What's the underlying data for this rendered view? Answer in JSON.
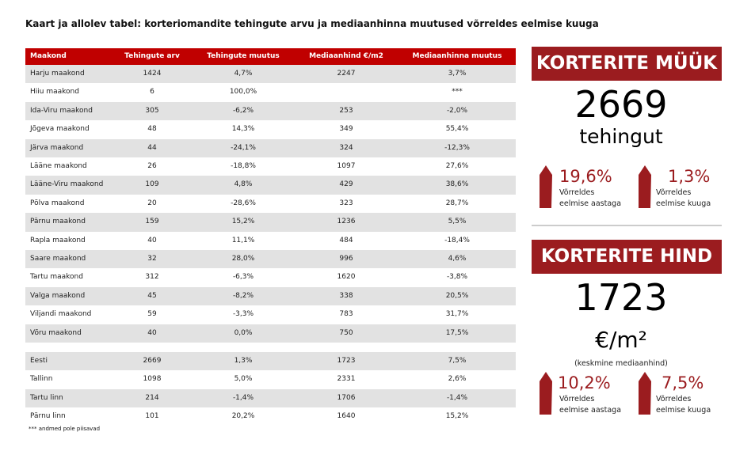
{
  "title": "Kaart ja allolev tabel: korteriomandite tehingute arvu ja mediaanhinna muutused võrreldes eelmise kuuga",
  "table": {
    "header": [
      "Maakond",
      "Tehingute arv",
      "Tehingute muutus",
      "Mediaanhind €/m2",
      "Mediaanhinna muutus"
    ],
    "rows": [
      [
        "Harju maakond",
        "1424",
        "4,7%",
        "2247",
        "3,7%"
      ],
      [
        "Hiiu maakond",
        "6",
        "100,0%",
        null,
        "***"
      ],
      [
        "Ida-Viru maakond",
        "305",
        "-6,2%",
        "253",
        "-2,0%"
      ],
      [
        "Jõgeva maakond",
        "48",
        "14,3%",
        "349",
        "55,4%"
      ],
      [
        "Järva maakond",
        "44",
        "-24,1%",
        "324",
        "-12,3%"
      ],
      [
        "Lääne maakond",
        "26",
        "-18,8%",
        "1097",
        "27,6%"
      ],
      [
        "Lääne-Viru maakond",
        "109",
        "4,8%",
        "429",
        "38,6%"
      ],
      [
        "Põlva maakond",
        "20",
        "-28,6%",
        "323",
        "28,7%"
      ],
      [
        "Pärnu maakond",
        "159",
        "15,2%",
        "1236",
        "5,5%"
      ],
      [
        "Rapla maakond",
        "40",
        "11,1%",
        "484",
        "-18,4%"
      ],
      [
        "Saare maakond",
        "32",
        "28,0%",
        "996",
        "4,6%"
      ],
      [
        "Tartu maakond",
        "312",
        "-6,3%",
        "1620",
        "-3,8%"
      ],
      [
        "Valga maakond",
        "45",
        "-8,2%",
        "338",
        "20,5%"
      ],
      [
        "Viljandi maakond",
        "59",
        "-3,3%",
        "783",
        "31,7%"
      ],
      [
        "Võru maakond",
        "40",
        "0,0%",
        "750",
        "17,5%"
      ]
    ],
    "summary_rows": [
      [
        "Eesti",
        "2669",
        "1,3%",
        "1723",
        "7,5%"
      ],
      [
        "Tallinn",
        "1098",
        "5,0%",
        "2331",
        "2,6%"
      ],
      [
        "Tartu linn",
        "214",
        "-1,4%",
        "1706",
        "-1,4%"
      ],
      [
        "Pärnu linn",
        "101",
        "20,2%",
        "1640",
        "15,2%"
      ]
    ]
  },
  "footnote": "*** andmed pole piisavad",
  "panels": [
    {
      "heading": "KORTERITE MÜÜK",
      "value": "2669",
      "unit": "tehingut",
      "changes": [
        {
          "value": "19,6%",
          "label": "Võrreldes eelmise aastaga"
        },
        {
          "value": "1,3%",
          "label": "Võrreldes eelmise kuuga"
        }
      ]
    },
    {
      "heading": "KORTERITE HIND",
      "value": "1723",
      "unit": "€/m²",
      "note": "(keskmine mediaanhind)",
      "changes": [
        {
          "value": "10,2%",
          "label": "Võrreldes eelmise aastaga"
        },
        {
          "value": "7,5%",
          "label": "Võrreldes eelmise kuuga"
        }
      ]
    }
  ]
}
